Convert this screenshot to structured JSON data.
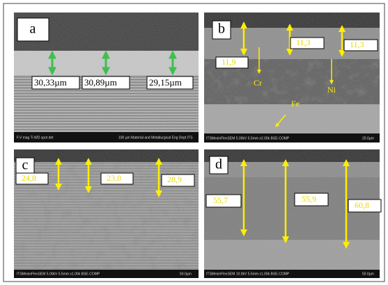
{
  "panels": [
    {
      "label": "a",
      "measurements": [
        "30,33µm",
        "30,89µm",
        "29,15µm"
      ],
      "footer": [
        "F.V mag Ti WD spot det",
        "100 µm  Material and Metallurgical Eng Dept ITS"
      ]
    },
    {
      "label": "b",
      "measurements": [
        "11,9",
        "11,3",
        "11,3"
      ],
      "annotations": [
        "Cr",
        "Ni",
        "Fe"
      ],
      "footer": [
        "ITSMesinFlexSEM 5.00kV 5.5mm x2.00k BSE-COMP",
        "20.0µm"
      ]
    },
    {
      "label": "c",
      "measurements": [
        "24,8",
        "23,0",
        "28,9"
      ],
      "footer": [
        "ITSMesinFlexSEM 5.00kV 5.5mm x1.00k BSE-COMP",
        "50.0µm"
      ]
    },
    {
      "label": "d",
      "measurements": [
        "55,7",
        "55,9",
        "60,8"
      ],
      "footer": [
        "ITSMesinFlexSEM 10.0kV 5.5mm x1.00k BSE-COMP",
        "50.0µm"
      ]
    }
  ]
}
